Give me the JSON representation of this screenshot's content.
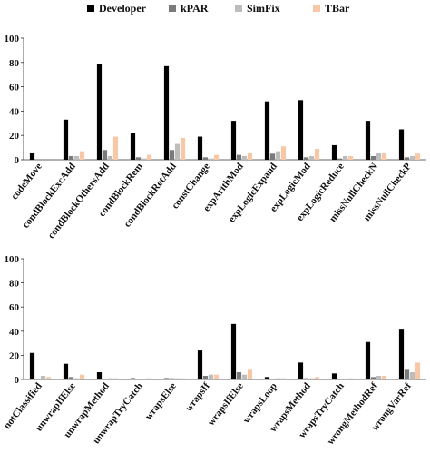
{
  "colors": {
    "Developer": "#000000",
    "kPAR": "#7a7a7a",
    "SimFix": "#bdbdbd",
    "TBar": "#f8c7a6"
  },
  "chart_data": [
    {
      "type": "bar",
      "legend": [
        "Developer",
        "kPAR",
        "SimFix",
        "TBar"
      ],
      "legend_position": "top",
      "ylim": [
        0,
        100
      ],
      "yticks": [
        0,
        20,
        40,
        60,
        80,
        100
      ],
      "categories": [
        "codeMove",
        "condBlockExcAdd",
        "condBlockOthersAdd",
        "condBlockRem",
        "condBlockRetAdd",
        "constChange",
        "expArithMod",
        "expLogicExpand",
        "expLogicMod",
        "expLogicReduce",
        "missNullCheckN",
        "missNullCheckP"
      ],
      "series": [
        {
          "name": "Developer",
          "values": [
            6,
            33,
            79,
            22,
            77,
            19,
            32,
            48,
            49,
            12,
            32,
            25
          ]
        },
        {
          "name": "kPAR",
          "values": [
            0,
            3,
            8,
            2,
            8,
            2,
            4,
            5,
            2,
            1,
            3,
            2
          ]
        },
        {
          "name": "SimFix",
          "values": [
            0,
            3,
            3,
            1,
            13,
            1,
            3,
            7,
            3,
            3,
            6,
            3
          ]
        },
        {
          "name": "TBar",
          "values": [
            0,
            7,
            19,
            4,
            18,
            4,
            6,
            11,
            9,
            3,
            6,
            5
          ]
        }
      ]
    },
    {
      "type": "bar",
      "ylim": [
        0,
        100
      ],
      "yticks": [
        0,
        20,
        40,
        60,
        80,
        100
      ],
      "categories": [
        "notClassified",
        "unwrapIfElse",
        "unwrapMethod",
        "unwrapTryCatch",
        "wrapsElse",
        "wrapsIf",
        "wrapsIfElse",
        "wrapsLoop",
        "wrapsMethod",
        "wrapsTryCatch",
        "wrongMethodRef",
        "wrongVarRef"
      ],
      "series": [
        {
          "name": "Developer",
          "values": [
            22,
            13,
            6,
            1,
            1,
            24,
            46,
            2,
            14,
            5,
            31,
            42
          ]
        },
        {
          "name": "kPAR",
          "values": [
            0,
            2,
            0,
            0,
            1,
            3,
            6,
            0,
            1,
            0,
            2,
            8
          ]
        },
        {
          "name": "SimFix",
          "values": [
            3,
            1,
            1,
            0,
            1,
            4,
            4,
            1,
            1,
            0,
            3,
            6
          ]
        },
        {
          "name": "TBar",
          "values": [
            2,
            4,
            1,
            1,
            1,
            4,
            8,
            1,
            2,
            1,
            3,
            14
          ]
        }
      ]
    }
  ]
}
